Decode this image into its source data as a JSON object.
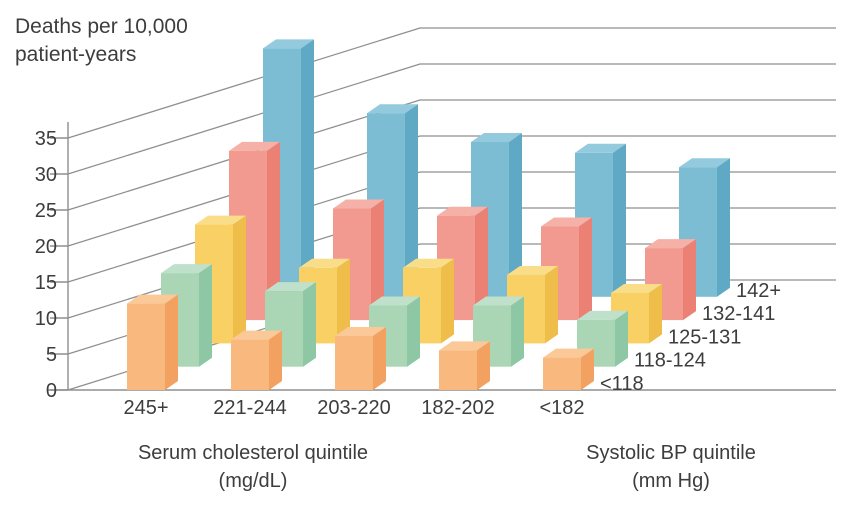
{
  "title": {
    "line1": "Deaths per 10,000",
    "line2": "patient-years"
  },
  "x_axis": {
    "title_line1": "Serum cholesterol quintile",
    "title_line2": "(mg/dL)"
  },
  "depth_axis": {
    "title_line1": "Systolic BP quintile",
    "title_line2": "(mm Hg)"
  },
  "chart_data": {
    "type": "bar",
    "projection": "3d-oblique",
    "title": "Deaths per 10,000 patient-years",
    "xlabel": "Serum cholesterol quintile (mg/dL)",
    "depth_label": "Systolic BP quintile (mm Hg)",
    "ylabel": "Deaths per 10,000 patient-years",
    "categories": [
      "245+",
      "221-244",
      "203-220",
      "182-202",
      "<182"
    ],
    "y_ticks": [
      0,
      5,
      10,
      15,
      20,
      25,
      30,
      35
    ],
    "ylim": [
      0,
      35
    ],
    "grid": "on",
    "legend_position": "depth-axis-right",
    "series": [
      {
        "name": "<118",
        "colors": {
          "front": "#f9b87e",
          "side": "#f3a160",
          "top": "#fbc997"
        },
        "values": [
          12,
          7,
          7.5,
          5.5,
          4.5
        ]
      },
      {
        "name": "118-124",
        "colors": {
          "front": "#aad6b6",
          "side": "#8ec7a3",
          "top": "#bfe0cb"
        },
        "values": [
          13,
          10.5,
          8.5,
          8.5,
          6.5
        ]
      },
      {
        "name": "125-131",
        "colors": {
          "front": "#f8d064",
          "side": "#eebd4a",
          "top": "#fadd88"
        },
        "values": [
          16.5,
          10.5,
          10.5,
          9.5,
          7
        ]
      },
      {
        "name": "132-141",
        "colors": {
          "front": "#f29a90",
          "side": "#eb8175",
          "top": "#f5b0a8"
        },
        "values": [
          23.5,
          15.5,
          14.5,
          13,
          10
        ]
      },
      {
        "name": "142+",
        "colors": {
          "front": "#7dbdd4",
          "side": "#60a9c5",
          "top": "#93cade"
        },
        "values": [
          34.5,
          25.5,
          21.5,
          20,
          18
        ]
      }
    ],
    "grid_color": "#8f8f8f",
    "text_color": "#3d3d3d"
  }
}
